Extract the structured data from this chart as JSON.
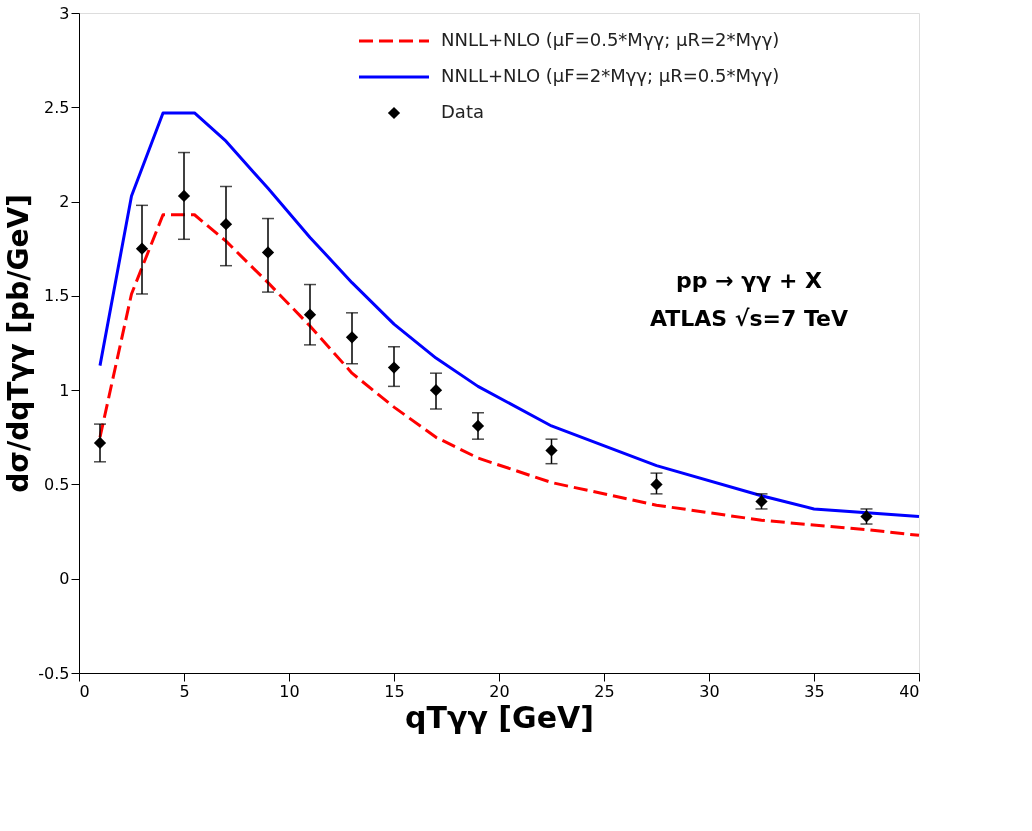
{
  "chart_data": {
    "type": "line",
    "xlabel": "qTγγ [GeV]",
    "ylabel": "dσ/dqTγγ [pb/GeV]",
    "xlim": [
      0,
      40
    ],
    "xticks": [
      0,
      5,
      10,
      15,
      20,
      25,
      30,
      35,
      40
    ],
    "ylim": [
      -0.5,
      3
    ],
    "yticks": [
      -0.5,
      0,
      0.5,
      1,
      1.5,
      2,
      2.5,
      3
    ],
    "grid": false,
    "legend": "top right",
    "annotations": [
      "pp → γγ + X",
      "ATLAS  √s=7 TeV"
    ],
    "series": [
      {
        "name": "NNLL+NLO (μF=0.5*Mγγ;  μR=2*Mγγ)",
        "line_style": "dashed",
        "color": "#ff0000",
        "x": [
          1,
          2.5,
          4,
          5.5,
          7,
          9,
          11,
          13,
          15,
          17,
          19,
          22.5,
          27.5,
          32.5,
          37.5,
          40
        ],
        "values": [
          0.75,
          1.51,
          1.93,
          1.93,
          1.79,
          1.57,
          1.34,
          1.09,
          0.91,
          0.75,
          0.64,
          0.51,
          0.39,
          0.31,
          0.26,
          0.23
        ]
      },
      {
        "name": "NNLL+NLO (μF=2*Mγγ; μR=0.5*Mγγ)",
        "line_style": "solid",
        "color": "#0000ff",
        "x": [
          1,
          2.5,
          4,
          5.5,
          7,
          9,
          11,
          13,
          15,
          17,
          19,
          22.5,
          27.5,
          32.5,
          35,
          40
        ],
        "values": [
          1.13,
          2.03,
          2.47,
          2.47,
          2.32,
          2.07,
          1.81,
          1.57,
          1.35,
          1.17,
          1.02,
          0.81,
          0.6,
          0.44,
          0.37,
          0.33
        ]
      },
      {
        "name": "Data",
        "type": "scatter",
        "marker": "diamond",
        "color": "#000000",
        "x": [
          1,
          3,
          5,
          7,
          9,
          11,
          13,
          15,
          17,
          19,
          22.5,
          27.5,
          32.5,
          37.5
        ],
        "values": [
          0.72,
          1.75,
          2.03,
          1.88,
          1.73,
          1.4,
          1.28,
          1.12,
          1.0,
          0.81,
          0.68,
          0.5,
          0.41,
          0.33
        ],
        "errors": [
          [
            0.62,
            0.82
          ],
          [
            1.51,
            1.98
          ],
          [
            1.8,
            2.26
          ],
          [
            1.66,
            2.08
          ],
          [
            1.52,
            1.91
          ],
          [
            1.24,
            1.56
          ],
          [
            1.14,
            1.41
          ],
          [
            1.02,
            1.23
          ],
          [
            0.9,
            1.09
          ],
          [
            0.74,
            0.88
          ],
          [
            0.61,
            0.74
          ],
          [
            0.45,
            0.56
          ],
          [
            0.37,
            0.45
          ],
          [
            0.29,
            0.37
          ]
        ]
      }
    ]
  }
}
